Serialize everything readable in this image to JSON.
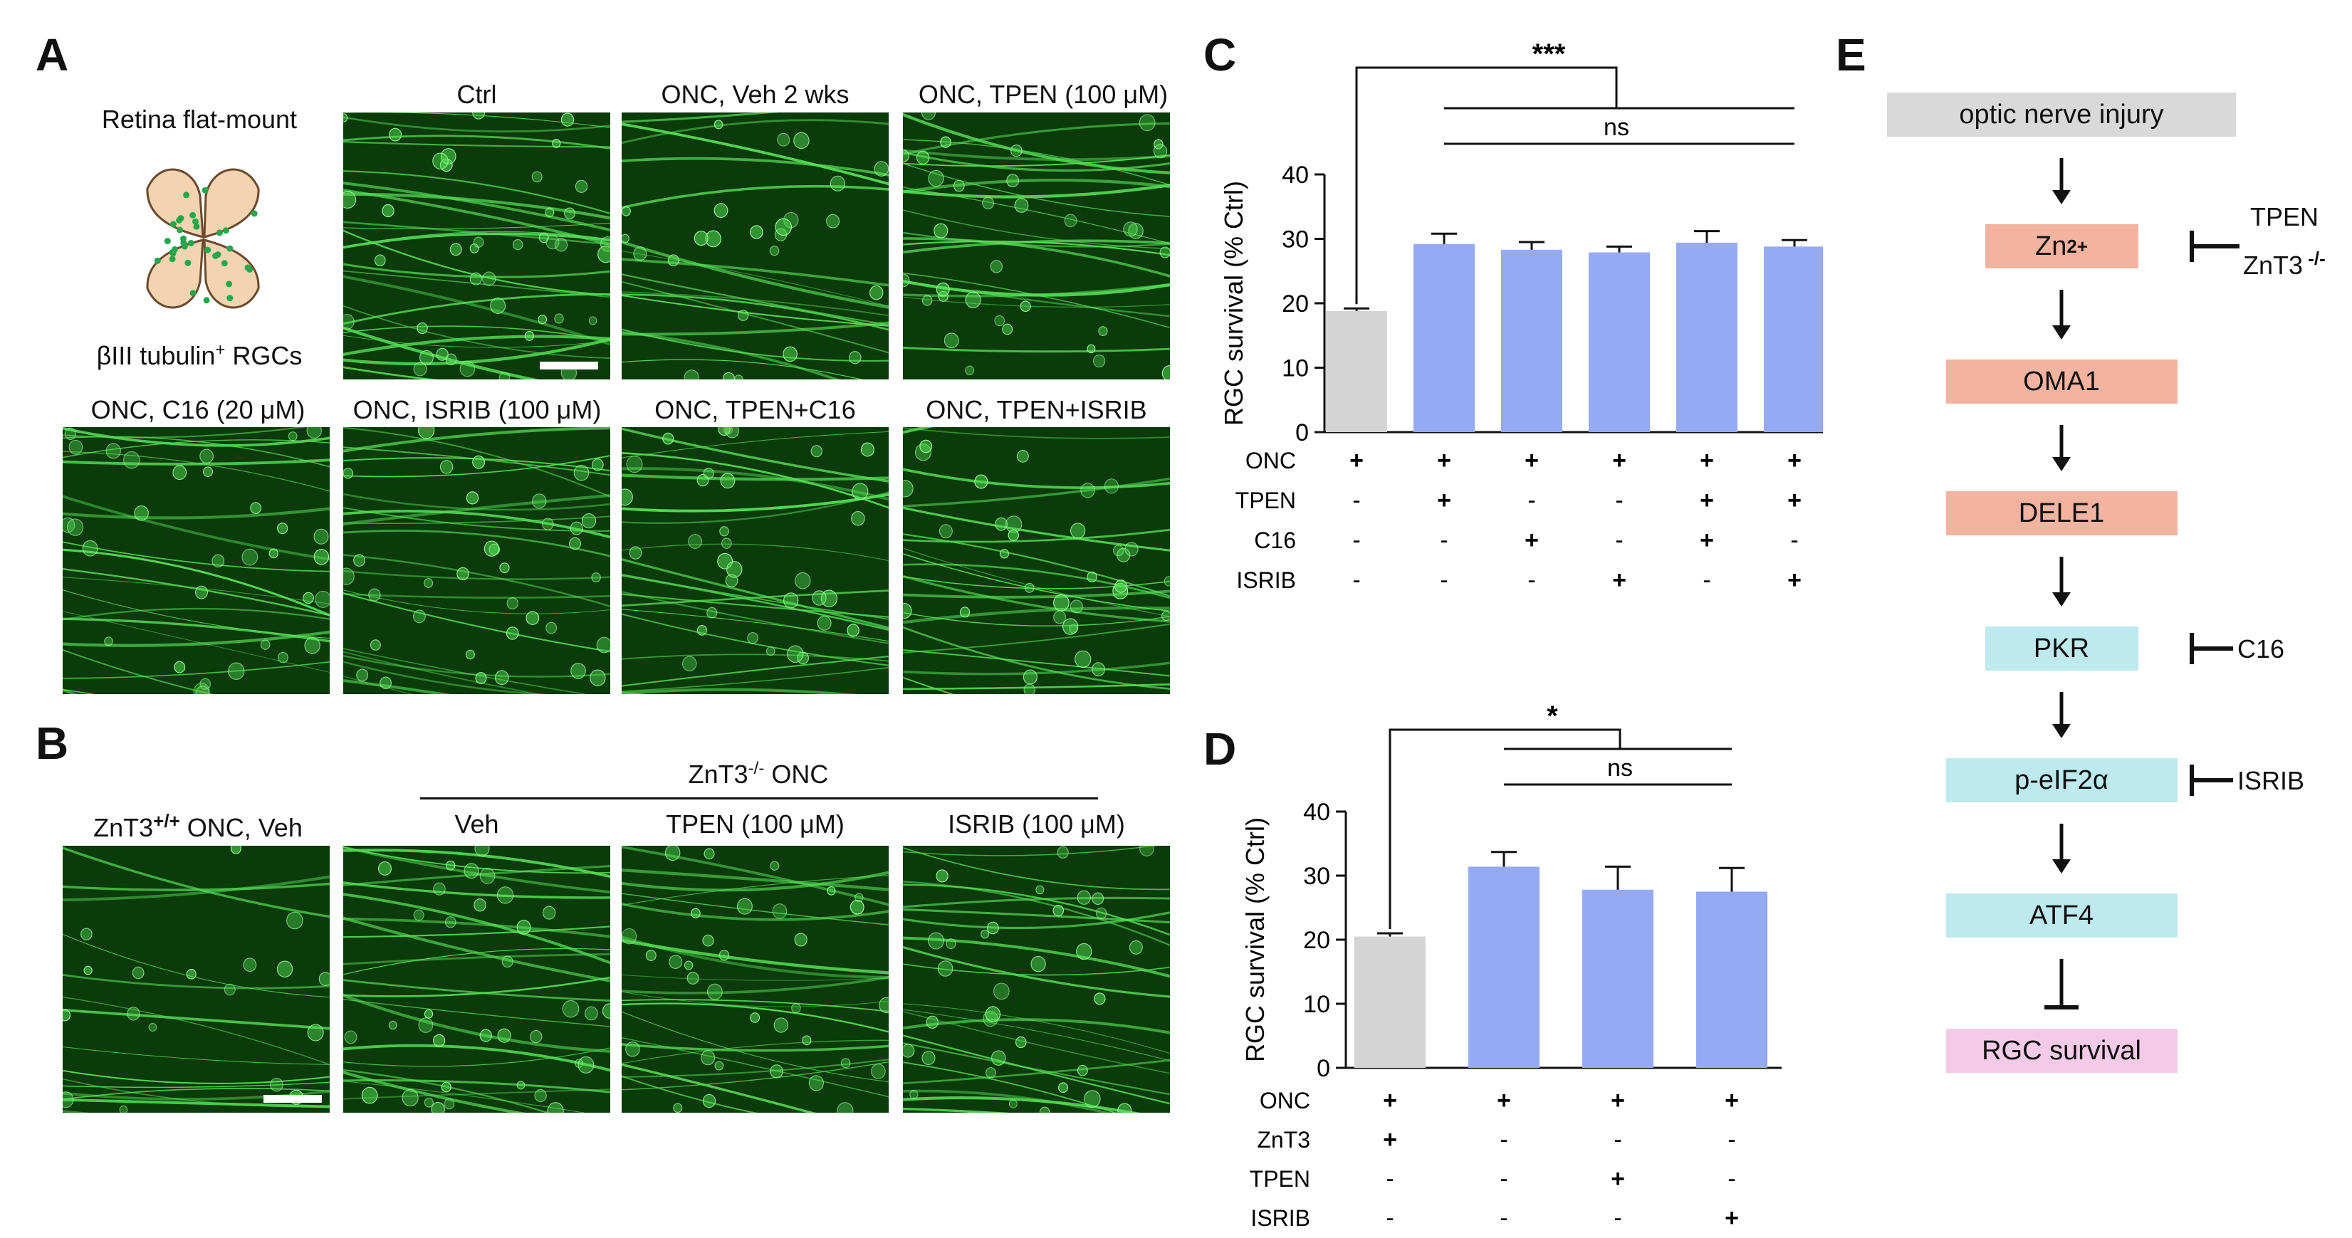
{
  "colors": {
    "grey_bar": "#d4d4d4",
    "blue_bar": "#95a9f4",
    "box_grey": "#d9d9d9",
    "box_salmon": "#f2b3a0",
    "box_cyan": "#bde9ef",
    "box_pink": "#f4cbe7",
    "micro_bg": "#0b3a0b",
    "micro_fg": "#55e055",
    "retina": "#f2d4b0",
    "rgc_dot": "#22a84a"
  },
  "panelA": {
    "letter": "A",
    "schematic_title": "Retina flat-mount",
    "schematic_caption_pre": "βIII tubulin",
    "schematic_caption_sup": "+",
    "schematic_caption_post": " RGCs",
    "images": [
      {
        "label": "Ctrl"
      },
      {
        "label": "ONC, Veh 2 wks"
      },
      {
        "label": "ONC, TPEN (100 μM)"
      },
      {
        "label": "ONC, C16 (20 μM)"
      },
      {
        "label": "ONC, ISRIB (100 μM)"
      },
      {
        "label": "ONC, TPEN+C16"
      },
      {
        "label": "ONC, TPEN+ISRIB"
      }
    ]
  },
  "panelB": {
    "letter": "B",
    "group_label_pre": "ZnT3",
    "group_label_sup": "-/-",
    "group_label_post": " ONC",
    "wt_label_pre": "ZnT3",
    "wt_label_sup": "+/+",
    "wt_label_post": " ONC, Veh",
    "images": [
      {
        "label": "Veh"
      },
      {
        "label": "TPEN (100 μM)"
      },
      {
        "label": "ISRIB (100 μM)"
      }
    ]
  },
  "panelC": {
    "letter": "C",
    "sig_main": "***",
    "sig_ns": "ns",
    "row_labels": [
      "ONC",
      "TPEN",
      "C16",
      "ISRIB"
    ],
    "rows": [
      [
        "+",
        "+",
        "+",
        "+",
        "+",
        "+"
      ],
      [
        "-",
        "+",
        "-",
        "-",
        "+",
        "+"
      ],
      [
        "-",
        "-",
        "+",
        "-",
        "+",
        "-"
      ],
      [
        "-",
        "-",
        "-",
        "+",
        "-",
        "+"
      ]
    ]
  },
  "panelD": {
    "letter": "D",
    "sig_main": "*",
    "sig_ns": "ns",
    "row_labels": [
      "ONC",
      "ZnT3",
      "TPEN",
      "ISRIB"
    ],
    "rows": [
      [
        "+",
        "+",
        "+",
        "+"
      ],
      [
        "+",
        "-",
        "-",
        "-"
      ],
      [
        "-",
        "-",
        "+",
        "-"
      ],
      [
        "-",
        "-",
        "-",
        "+"
      ]
    ]
  },
  "chart_data": [
    {
      "type": "bar",
      "panel": "C",
      "title": "",
      "xlabel": "",
      "ylabel": "RGC survival (% Ctrl)",
      "ylim": [
        0,
        40
      ],
      "yticks": [
        0,
        10,
        20,
        30,
        40
      ],
      "values": [
        18.8,
        29.2,
        28.3,
        27.9,
        29.4,
        28.8
      ],
      "errors": [
        0.4,
        1.6,
        1.2,
        0.9,
        1.8,
        1.0
      ]
    },
    {
      "type": "bar",
      "panel": "D",
      "title": "",
      "xlabel": "",
      "ylabel": "RGC survival (% Ctrl)",
      "ylim": [
        0,
        40
      ],
      "yticks": [
        0,
        10,
        20,
        30,
        40
      ],
      "values": [
        20.5,
        31.4,
        27.8,
        27.5
      ],
      "errors": [
        0.5,
        2.3,
        3.6,
        3.7
      ]
    }
  ],
  "panelE": {
    "letter": "E",
    "boxes": [
      {
        "pre": "optic nerve injury",
        "sup": ""
      },
      {
        "pre": "Zn",
        "sup": "2+"
      },
      {
        "pre": "OMA1",
        "sup": ""
      },
      {
        "pre": "DELE1",
        "sup": ""
      },
      {
        "pre": "PKR",
        "sup": ""
      },
      {
        "pre": "p-eIF2α",
        "sup": ""
      },
      {
        "pre": "ATF4",
        "sup": ""
      },
      {
        "pre": "RGC survival",
        "sup": ""
      }
    ],
    "inhibitors": {
      "zn_line1": "TPEN",
      "zn_line2_pre": "ZnT3",
      "zn_line2_sup": " -/-",
      "pkr": "C16",
      "eif": "ISRIB"
    }
  }
}
